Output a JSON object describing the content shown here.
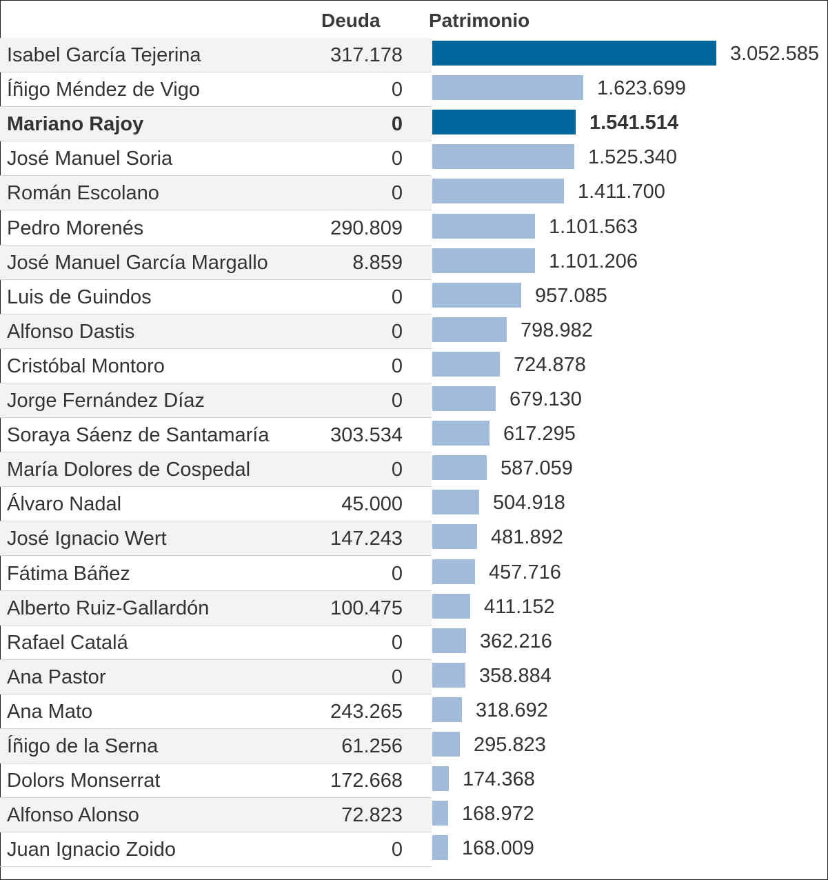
{
  "chart_data": {
    "type": "bar",
    "orientation": "horizontal",
    "columns": [
      "Deuda",
      "Patrimonio"
    ],
    "highlight_color": "#02659b",
    "bar_color": "#a2bbdb",
    "rows": [
      {
        "name": "Isabel García Tejerina",
        "deuda": "317.178",
        "patrimonio": 3052585,
        "patrimonio_label": "3.052.585",
        "highlight": true,
        "bold": false
      },
      {
        "name": "Íñigo Méndez de Vigo",
        "deuda": "0",
        "patrimonio": 1623699,
        "patrimonio_label": "1.623.699",
        "highlight": false,
        "bold": false
      },
      {
        "name": "Mariano Rajoy",
        "deuda": "0",
        "patrimonio": 1541514,
        "patrimonio_label": "1.541.514",
        "highlight": true,
        "bold": true
      },
      {
        "name": "José Manuel Soria",
        "deuda": "0",
        "patrimonio": 1525340,
        "patrimonio_label": "1.525.340",
        "highlight": false,
        "bold": false
      },
      {
        "name": "Román Escolano",
        "deuda": "0",
        "patrimonio": 1411700,
        "patrimonio_label": "1.411.700",
        "highlight": false,
        "bold": false
      },
      {
        "name": "Pedro Morenés",
        "deuda": "290.809",
        "patrimonio": 1101563,
        "patrimonio_label": "1.101.563",
        "highlight": false,
        "bold": false
      },
      {
        "name": "José Manuel García Margallo",
        "deuda": "8.859",
        "patrimonio": 1101206,
        "patrimonio_label": "1.101.206",
        "highlight": false,
        "bold": false
      },
      {
        "name": "Luis de Guindos",
        "deuda": "0",
        "patrimonio": 957085,
        "patrimonio_label": "957.085",
        "highlight": false,
        "bold": false
      },
      {
        "name": "Alfonso Dastis",
        "deuda": "0",
        "patrimonio": 798982,
        "patrimonio_label": "798.982",
        "highlight": false,
        "bold": false
      },
      {
        "name": "Cristóbal Montoro",
        "deuda": "0",
        "patrimonio": 724878,
        "patrimonio_label": "724.878",
        "highlight": false,
        "bold": false
      },
      {
        "name": "Jorge Fernández Díaz",
        "deuda": "0",
        "patrimonio": 679130,
        "patrimonio_label": "679.130",
        "highlight": false,
        "bold": false
      },
      {
        "name": "Soraya Sáenz de Santamaría",
        "deuda": "303.534",
        "patrimonio": 617295,
        "patrimonio_label": "617.295",
        "highlight": false,
        "bold": false
      },
      {
        "name": "María Dolores de Cospedal",
        "deuda": "0",
        "patrimonio": 587059,
        "patrimonio_label": "587.059",
        "highlight": false,
        "bold": false
      },
      {
        "name": "Álvaro Nadal",
        "deuda": "45.000",
        "patrimonio": 504918,
        "patrimonio_label": "504.918",
        "highlight": false,
        "bold": false
      },
      {
        "name": "José Ignacio Wert",
        "deuda": "147.243",
        "patrimonio": 481892,
        "patrimonio_label": "481.892",
        "highlight": false,
        "bold": false
      },
      {
        "name": "Fátima Báñez",
        "deuda": "0",
        "patrimonio": 457716,
        "patrimonio_label": "457.716",
        "highlight": false,
        "bold": false
      },
      {
        "name": "Alberto Ruiz-Gallardón",
        "deuda": "100.475",
        "patrimonio": 411152,
        "patrimonio_label": "411.152",
        "highlight": false,
        "bold": false
      },
      {
        "name": "Rafael Catalá",
        "deuda": "0",
        "patrimonio": 362216,
        "patrimonio_label": "362.216",
        "highlight": false,
        "bold": false
      },
      {
        "name": "Ana Pastor",
        "deuda": "0",
        "patrimonio": 358884,
        "patrimonio_label": "358.884",
        "highlight": false,
        "bold": false
      },
      {
        "name": "Ana Mato",
        "deuda": "243.265",
        "patrimonio": 318692,
        "patrimonio_label": "318.692",
        "highlight": false,
        "bold": false
      },
      {
        "name": "Íñigo de la Serna",
        "deuda": "61.256",
        "patrimonio": 295823,
        "patrimonio_label": "295.823",
        "highlight": false,
        "bold": false
      },
      {
        "name": "Dolors Monserrat",
        "deuda": "172.668",
        "patrimonio": 174368,
        "patrimonio_label": "174.368",
        "highlight": false,
        "bold": false
      },
      {
        "name": "Alfonso Alonso",
        "deuda": "72.823",
        "patrimonio": 168972,
        "patrimonio_label": "168.972",
        "highlight": false,
        "bold": false
      },
      {
        "name": "Juan Ignacio Zoido",
        "deuda": "0",
        "patrimonio": 168009,
        "patrimonio_label": "168.009",
        "highlight": false,
        "bold": false
      }
    ]
  }
}
